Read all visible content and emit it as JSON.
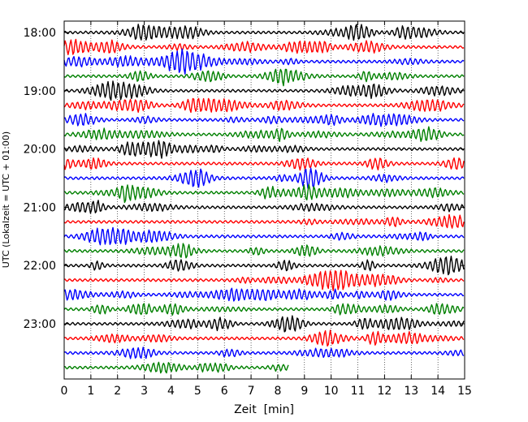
{
  "chart_data": {
    "type": "line",
    "title": "",
    "xlabel": "Zeit  [min]",
    "ylabel": "UTC (Lokalzeit = UTC + 01:00)",
    "xlim": [
      0,
      15
    ],
    "x_ticks": [
      0,
      1,
      2,
      3,
      4,
      5,
      6,
      7,
      8,
      9,
      10,
      11,
      12,
      13,
      14,
      15
    ],
    "x_tick_labels": [
      "0",
      "1",
      "2",
      "3",
      "4",
      "5",
      "6",
      "7",
      "8",
      "9",
      "10",
      "11",
      "12",
      "13",
      "14",
      "15"
    ],
    "y_tick_labels": [
      "18:00",
      "19:00",
      "20:00",
      "21:00",
      "22:00",
      "23:00"
    ],
    "y_start_hour": 18,
    "row_minutes": 15,
    "rows": 24,
    "vertical_grid": "dotted",
    "trace_colors": [
      "#000000",
      "#ff0000",
      "#0000ff",
      "#008000"
    ],
    "last_trace_end_minute": 8.4
  }
}
